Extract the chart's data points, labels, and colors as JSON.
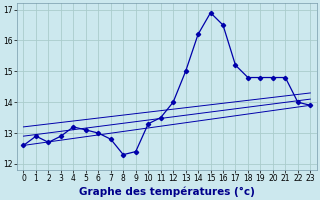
{
  "xlabel": "Graphe des températures (°c)",
  "background_color": "#cce8ee",
  "grid_color": "#aacccc",
  "line_color": "#0000aa",
  "hours": [
    0,
    1,
    2,
    3,
    4,
    5,
    6,
    7,
    8,
    9,
    10,
    11,
    12,
    13,
    14,
    15,
    16,
    17,
    18,
    19,
    20,
    21,
    22,
    23
  ],
  "temp_curve": [
    12.6,
    12.9,
    12.7,
    12.9,
    13.2,
    13.1,
    13.0,
    12.8,
    12.3,
    12.4,
    13.3,
    13.5,
    14.0,
    15.0,
    16.2,
    16.9,
    16.5,
    15.2,
    14.8,
    14.8,
    14.8,
    14.8,
    14.0,
    13.9
  ],
  "line1": [
    [
      0,
      12.6
    ],
    [
      23,
      13.9
    ]
  ],
  "line2": [
    [
      0,
      12.9
    ],
    [
      23,
      14.1
    ]
  ],
  "line3": [
    [
      0,
      13.2
    ],
    [
      23,
      14.3
    ]
  ],
  "ylim": [
    11.8,
    17.2
  ],
  "yticks": [
    12,
    13,
    14,
    15,
    16,
    17
  ],
  "xlim": [
    -0.5,
    23.5
  ],
  "xticks": [
    0,
    1,
    2,
    3,
    4,
    5,
    6,
    7,
    8,
    9,
    10,
    11,
    12,
    13,
    14,
    15,
    16,
    17,
    18,
    19,
    20,
    21,
    22,
    23
  ],
  "tick_fontsize": 5.5,
  "xlabel_fontsize": 7.5,
  "xlabel_color": "#00008b",
  "lw_main": 0.9,
  "lw_ref": 0.7,
  "marker_size": 2.2
}
